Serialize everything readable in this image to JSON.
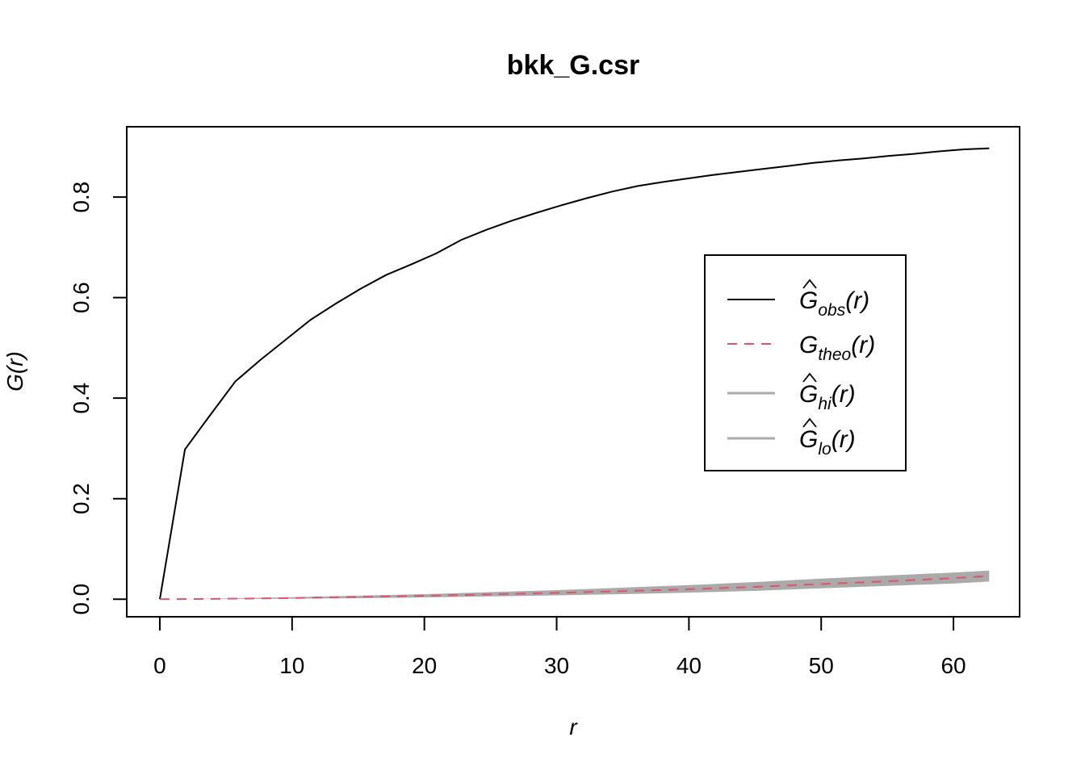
{
  "chart_data": {
    "type": "line",
    "title": "bkk_G.csr",
    "xlabel": "r",
    "ylabel": "G(r)",
    "xlim": [
      -2.5,
      65
    ],
    "ylim": [
      -0.035,
      0.94
    ],
    "xticks": [
      0,
      10,
      20,
      30,
      40,
      50,
      60
    ],
    "yticks": [
      0.0,
      0.2,
      0.4,
      0.6,
      0.8
    ],
    "xtick_labels": [
      "0",
      "10",
      "20",
      "30",
      "40",
      "50",
      "60"
    ],
    "ytick_labels": [
      "0.0",
      "0.2",
      "0.4",
      "0.6",
      "0.8"
    ],
    "grid": false,
    "legend_position": "right",
    "series": [
      {
        "name": "obs",
        "color": "#000000",
        "dash": "solid",
        "x": [
          0,
          1.9,
          3.8,
          5.7,
          7.6,
          9.5,
          11.4,
          13.3,
          15.2,
          17.1,
          19.0,
          20.9,
          22.8,
          24.7,
          26.6,
          28.5,
          30.4,
          32.3,
          34.2,
          36.1,
          38.0,
          39.9,
          41.8,
          43.7,
          45.6,
          47.5,
          49.4,
          51.3,
          53.2,
          55.1,
          57.0,
          58.9,
          60.8,
          62.7
        ],
        "y": [
          0.0,
          0.298,
          0.366,
          0.433,
          0.476,
          0.516,
          0.556,
          0.588,
          0.618,
          0.645,
          0.666,
          0.688,
          0.715,
          0.735,
          0.753,
          0.769,
          0.784,
          0.798,
          0.811,
          0.822,
          0.83,
          0.837,
          0.844,
          0.85,
          0.856,
          0.862,
          0.868,
          0.873,
          0.877,
          0.882,
          0.886,
          0.891,
          0.895,
          0.897
        ]
      },
      {
        "name": "theo",
        "color": "#df536b",
        "dash": "dashed",
        "x": [
          0,
          5,
          10,
          15,
          20,
          25,
          30,
          35,
          40,
          45,
          50,
          55,
          60,
          62.7
        ],
        "y": [
          0.0,
          0.0008,
          0.0023,
          0.0045,
          0.0068,
          0.0095,
          0.0125,
          0.016,
          0.0198,
          0.0245,
          0.03,
          0.0355,
          0.042,
          0.046
        ]
      }
    ],
    "envelope": {
      "color": "#aaaaaa",
      "x": [
        0,
        5,
        10,
        15,
        20,
        25,
        30,
        35,
        40,
        45,
        50,
        55,
        60,
        62.7
      ],
      "hi": [
        0.0,
        0.0015,
        0.004,
        0.007,
        0.01,
        0.014,
        0.018,
        0.023,
        0.028,
        0.034,
        0.041,
        0.047,
        0.053,
        0.057
      ],
      "lo": [
        0.0,
        0.0002,
        0.001,
        0.002,
        0.0035,
        0.0055,
        0.0075,
        0.01,
        0.013,
        0.0165,
        0.0215,
        0.0265,
        0.031,
        0.035
      ]
    },
    "legend": [
      {
        "key": "obs",
        "base": "G",
        "hat": true,
        "sub": "obs",
        "arg": "(r)",
        "color": "#000000",
        "dash": "solid"
      },
      {
        "key": "theo",
        "base": "G",
        "hat": false,
        "sub": "theo",
        "arg": "(r)",
        "color": "#df536b",
        "dash": "dashed"
      },
      {
        "key": "hi",
        "base": "G",
        "hat": true,
        "sub": "hi",
        "arg": "(r)",
        "color": "#aaaaaa",
        "dash": "solid"
      },
      {
        "key": "lo",
        "base": "G",
        "hat": true,
        "sub": "lo",
        "arg": "(r)",
        "color": "#aaaaaa",
        "dash": "solid"
      }
    ]
  }
}
